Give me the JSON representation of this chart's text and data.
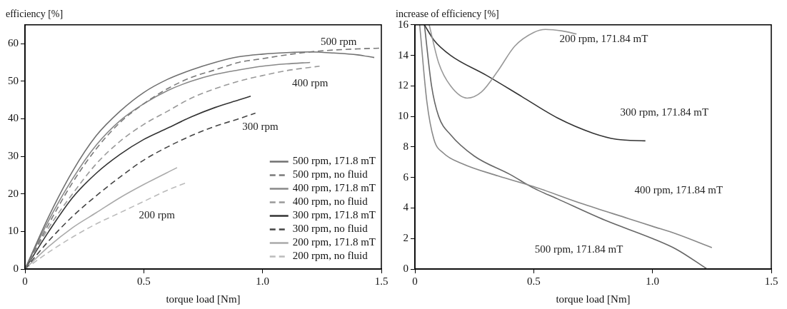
{
  "chart_data": [
    {
      "type": "line",
      "ylabel": "efficiency [%]",
      "xlabel": "torque load [Nm]",
      "xlim": [
        0,
        1.5
      ],
      "xticks": [
        0,
        0.5,
        {
          "value": 1,
          "label": "1.0"
        },
        1.5
      ],
      "ylim": [
        0,
        65
      ],
      "yticks": [
        0,
        10,
        20,
        30,
        40,
        50,
        60
      ],
      "legend": "bottom right",
      "marker": "none",
      "series": [
        {
          "name": "500 rpm, 171.8 mT",
          "color": "#707070",
          "line_style": "solid",
          "x": [
            0,
            0.1,
            0.2,
            0.3,
            0.4,
            0.5,
            0.6,
            0.7,
            0.8,
            0.9,
            1.0,
            1.1,
            1.2,
            1.3,
            1.4,
            1.47
          ],
          "values": [
            0,
            14,
            26,
            35.5,
            42,
            47,
            50.5,
            53,
            55,
            56.5,
            57.2,
            57.6,
            57.8,
            57.5,
            57,
            56.3
          ]
        },
        {
          "name": "500 rpm, no fluid",
          "color": "#7a7a7a",
          "line_style": "dashed",
          "x": [
            0,
            0.1,
            0.2,
            0.3,
            0.4,
            0.5,
            0.6,
            0.7,
            0.8,
            0.9,
            1.0,
            1.1,
            1.2,
            1.3,
            1.4,
            1.5
          ],
          "values": [
            0,
            12,
            23,
            32,
            39,
            44,
            48,
            51,
            53,
            55,
            56,
            57,
            57.8,
            58.3,
            58.6,
            58.8
          ]
        },
        {
          "name": "400 rpm, 171.8 mT",
          "color": "#888888",
          "line_style": "solid",
          "x": [
            0,
            0.1,
            0.2,
            0.3,
            0.4,
            0.5,
            0.6,
            0.7,
            0.8,
            0.9,
            1.0,
            1.1,
            1.2
          ],
          "values": [
            0,
            13,
            24,
            33,
            39.5,
            44,
            47.5,
            50,
            51.8,
            53,
            54,
            54.6,
            55
          ]
        },
        {
          "name": "400 rpm, no fluid",
          "color": "#999999",
          "line_style": "dashed",
          "x": [
            0,
            0.1,
            0.2,
            0.3,
            0.4,
            0.5,
            0.6,
            0.7,
            0.8,
            0.9,
            1.0,
            1.1,
            1.24
          ],
          "values": [
            0,
            11,
            20,
            28,
            34,
            38.5,
            42,
            45.5,
            48,
            50,
            51.5,
            52.8,
            54
          ]
        },
        {
          "name": "300 rpm, 171.8 mT",
          "color": "#333333",
          "line_style": "solid",
          "x": [
            0,
            0.1,
            0.2,
            0.3,
            0.4,
            0.5,
            0.6,
            0.7,
            0.8,
            0.9,
            0.95
          ],
          "values": [
            0,
            10,
            19,
            25.5,
            30.5,
            34.5,
            37.5,
            40.5,
            43,
            45,
            46
          ]
        },
        {
          "name": "300 rpm, no fluid",
          "color": "#444444",
          "line_style": "dashed",
          "x": [
            0,
            0.1,
            0.2,
            0.3,
            0.4,
            0.5,
            0.6,
            0.7,
            0.8,
            0.9,
            0.97
          ],
          "values": [
            0,
            7.5,
            14,
            19.5,
            24.5,
            29,
            32.5,
            35.5,
            38,
            40,
            41.5
          ]
        },
        {
          "name": "200 rpm, 171.8 mT",
          "color": "#aaaaaa",
          "line_style": "solid",
          "x": [
            0,
            0.1,
            0.2,
            0.3,
            0.4,
            0.5,
            0.64
          ],
          "values": [
            0,
            6,
            11,
            15,
            19,
            22.5,
            27
          ]
        },
        {
          "name": "200 rpm, no fluid",
          "color": "#bbbbbb",
          "line_style": "dashed",
          "x": [
            0,
            0.1,
            0.2,
            0.3,
            0.4,
            0.5,
            0.6,
            0.68
          ],
          "values": [
            0,
            4.5,
            8.5,
            12,
            15,
            18,
            21,
            23
          ]
        }
      ],
      "annotations": [
        "500 rpm",
        "400 rpm",
        "300 rpm",
        "200 rpm"
      ]
    },
    {
      "type": "line",
      "ylabel": "increase of efficiency [%]",
      "xlabel": "torque load [Nm]",
      "xlim": [
        0,
        1.5
      ],
      "xticks": [
        0,
        0.5,
        {
          "value": 1,
          "label": "1.0"
        },
        1.5
      ],
      "ylim": [
        0,
        16
      ],
      "yticks": [
        0,
        2,
        4,
        6,
        8,
        10,
        12,
        14,
        16
      ],
      "marker": "none",
      "series": [
        {
          "color": "#999999",
          "line_style": "solid",
          "x": [
            0.06,
            0.1,
            0.15,
            0.22,
            0.28,
            0.35,
            0.42,
            0.5,
            0.55,
            0.62,
            0.68
          ],
          "values": [
            16,
            13.5,
            12,
            11.2,
            11.6,
            13,
            14.6,
            15.5,
            15.7,
            15.6,
            15.4
          ]
        },
        {
          "color": "#333333",
          "line_style": "solid",
          "x": [
            0.04,
            0.08,
            0.15,
            0.3,
            0.45,
            0.6,
            0.75,
            0.85,
            0.97
          ],
          "values": [
            16,
            15,
            14,
            12.7,
            11.3,
            9.9,
            8.9,
            8.5,
            8.4
          ]
        },
        {
          "color": "#888888",
          "line_style": "solid",
          "x": [
            0.02,
            0.05,
            0.08,
            0.12,
            0.2,
            0.35,
            0.5,
            0.7,
            0.9,
            1.0,
            1.1,
            1.25
          ],
          "values": [
            16,
            11,
            8.5,
            7.6,
            6.9,
            6.1,
            5.4,
            4.3,
            3.3,
            2.8,
            2.3,
            1.4
          ]
        },
        {
          "color": "#666666",
          "line_style": "solid",
          "x": [
            0.04,
            0.07,
            0.1,
            0.15,
            0.25,
            0.4,
            0.5,
            0.6,
            0.8,
            1.0,
            1.1,
            1.23
          ],
          "values": [
            16,
            12,
            10,
            8.8,
            7.4,
            6.2,
            5.3,
            4.6,
            3.2,
            2.0,
            1.3,
            0
          ]
        }
      ],
      "annotations": [
        "200 rpm, 171.84 mT",
        "300 rpm, 171.84 mT",
        "400 rpm, 171.84 mT",
        "500 rpm, 171.84 mT"
      ]
    }
  ]
}
